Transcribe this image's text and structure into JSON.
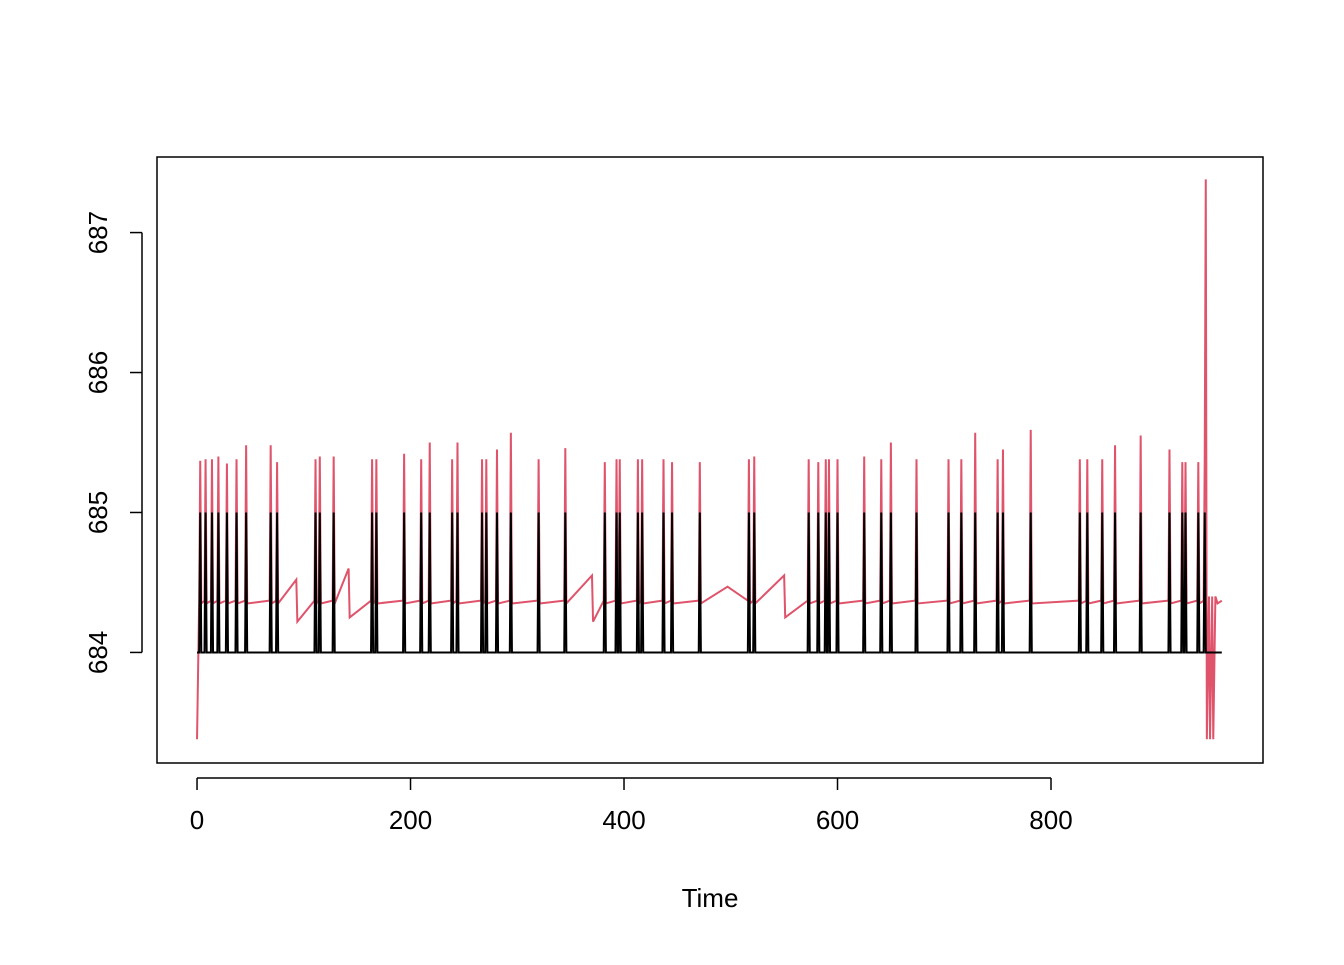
{
  "chart_data": {
    "type": "line",
    "xlabel": "Time",
    "x": [
      0,
      2,
      3,
      4,
      7,
      8,
      9,
      13,
      14,
      15,
      19,
      20,
      21,
      27,
      28,
      29,
      36,
      37,
      38,
      45,
      46,
      47,
      68,
      69,
      70,
      74,
      75,
      76,
      93,
      94,
      110,
      111,
      112,
      114,
      115,
      116,
      127,
      128,
      129,
      142,
      143,
      163,
      164,
      165,
      167,
      168,
      169,
      193,
      194,
      195,
      209,
      210,
      211,
      217,
      218,
      219,
      238,
      239,
      240,
      243,
      244,
      245,
      266,
      267,
      268,
      270,
      271,
      272,
      280,
      281,
      282,
      293,
      294,
      295,
      319,
      320,
      321,
      344,
      345,
      346,
      370,
      371,
      381,
      382,
      383,
      392,
      393,
      394,
      395,
      396,
      397,
      412,
      413,
      414,
      416,
      417,
      418,
      436,
      437,
      438,
      444,
      445,
      446,
      470,
      471,
      472,
      497,
      516,
      517,
      518,
      521,
      522,
      523,
      550,
      551,
      572,
      573,
      574,
      581,
      582,
      583,
      588,
      589,
      590,
      591,
      592,
      593,
      599,
      600,
      601,
      624,
      625,
      626,
      640,
      641,
      642,
      649,
      650,
      651,
      673,
      674,
      675,
      703,
      704,
      705,
      715,
      716,
      717,
      728,
      729,
      730,
      749,
      750,
      751,
      754,
      755,
      756,
      780,
      781,
      782,
      826,
      827,
      828,
      833,
      834,
      835,
      847,
      848,
      849,
      859,
      860,
      861,
      883,
      884,
      885,
      910,
      911,
      912,
      922,
      923,
      924,
      925,
      926,
      927,
      937,
      938,
      939,
      943,
      944,
      945,
      946,
      948,
      949,
      951,
      952,
      954,
      956,
      960
    ],
    "series": [
      {
        "color": "#DF536B",
        "values": [
          683.38,
          684.37,
          685.37,
          684.35,
          684.37,
          685.38,
          684.35,
          684.37,
          685.38,
          684.35,
          684.37,
          685.4,
          684.35,
          684.37,
          685.35,
          684.35,
          684.37,
          685.38,
          684.35,
          684.37,
          685.48,
          684.35,
          684.37,
          685.48,
          684.35,
          684.37,
          685.36,
          684.35,
          684.52,
          684.22,
          684.37,
          685.38,
          684.35,
          684.37,
          685.4,
          684.35,
          684.37,
          685.4,
          684.35,
          684.6,
          684.25,
          684.37,
          685.38,
          684.35,
          684.37,
          685.38,
          684.35,
          684.37,
          685.42,
          684.35,
          684.37,
          685.38,
          684.35,
          684.37,
          685.5,
          684.35,
          684.37,
          685.38,
          684.35,
          684.37,
          685.5,
          684.35,
          684.37,
          685.38,
          684.35,
          684.37,
          685.38,
          684.35,
          684.37,
          685.45,
          684.35,
          684.37,
          685.57,
          684.35,
          684.37,
          685.38,
          684.35,
          684.37,
          685.46,
          684.35,
          684.55,
          684.22,
          684.37,
          685.36,
          684.35,
          684.37,
          685.38,
          684.35,
          684.37,
          685.38,
          684.35,
          684.37,
          685.38,
          684.35,
          684.37,
          685.38,
          684.35,
          684.37,
          685.38,
          684.35,
          684.37,
          685.36,
          684.35,
          684.37,
          685.36,
          684.35,
          684.47,
          684.37,
          685.38,
          684.35,
          684.37,
          685.4,
          684.35,
          684.55,
          684.25,
          684.37,
          685.38,
          684.35,
          684.37,
          685.36,
          684.35,
          684.37,
          685.38,
          684.35,
          684.37,
          685.38,
          684.35,
          684.37,
          685.38,
          684.35,
          684.37,
          685.4,
          684.35,
          684.37,
          685.38,
          684.35,
          684.37,
          685.5,
          684.35,
          684.37,
          685.38,
          684.35,
          684.37,
          685.38,
          684.35,
          684.37,
          685.38,
          684.35,
          684.37,
          685.57,
          684.35,
          684.37,
          685.38,
          684.35,
          684.37,
          685.45,
          684.35,
          684.37,
          685.59,
          684.35,
          684.37,
          685.38,
          684.35,
          684.37,
          685.38,
          684.35,
          684.37,
          685.38,
          684.35,
          684.37,
          685.48,
          684.35,
          684.37,
          685.55,
          684.35,
          684.37,
          685.45,
          684.35,
          684.37,
          685.36,
          684.35,
          684.37,
          685.36,
          684.35,
          684.37,
          685.36,
          684.35,
          684.37,
          685.38,
          687.38,
          683.38,
          684.4,
          683.38,
          684.4,
          683.38,
          684.4,
          684.35,
          684.37
        ]
      },
      {
        "color": "#000000",
        "values": [
          684,
          684,
          685,
          684,
          684,
          685,
          684,
          684,
          685,
          684,
          684,
          685,
          684,
          684,
          685,
          684,
          684,
          685,
          684,
          684,
          685,
          684,
          684,
          685,
          684,
          684,
          685,
          684,
          684,
          684,
          684,
          685,
          684,
          684,
          685,
          684,
          684,
          685,
          684,
          684,
          684,
          684,
          685,
          684,
          684,
          685,
          684,
          684,
          685,
          684,
          684,
          685,
          684,
          684,
          685,
          684,
          684,
          685,
          684,
          684,
          685,
          684,
          684,
          685,
          684,
          684,
          685,
          684,
          684,
          685,
          684,
          684,
          685,
          684,
          684,
          685,
          684,
          684,
          685,
          684,
          684,
          684,
          684,
          685,
          684,
          684,
          685,
          684,
          684,
          685,
          684,
          684,
          685,
          684,
          684,
          685,
          684,
          684,
          685,
          684,
          684,
          685,
          684,
          684,
          685,
          684,
          684,
          684,
          685,
          684,
          684,
          685,
          684,
          684,
          684,
          684,
          685,
          684,
          684,
          685,
          684,
          684,
          685,
          684,
          684,
          685,
          684,
          684,
          685,
          684,
          684,
          685,
          684,
          684,
          685,
          684,
          684,
          685,
          684,
          684,
          685,
          684,
          684,
          685,
          684,
          684,
          685,
          684,
          684,
          685,
          684,
          684,
          685,
          684,
          684,
          685,
          684,
          684,
          685,
          684,
          684,
          685,
          684,
          684,
          685,
          684,
          684,
          685,
          684,
          684,
          685,
          684,
          684,
          685,
          684,
          684,
          685,
          684,
          684,
          685,
          684,
          684,
          685,
          684,
          684,
          685,
          684,
          684,
          685,
          684,
          684,
          684,
          684,
          684,
          684,
          684,
          684,
          684
        ]
      }
    ],
    "xlim": [
      -37.5,
      998.6
    ],
    "ylim": [
      683.21,
      687.54
    ],
    "xticks": [
      0,
      200,
      400,
      600,
      800
    ],
    "yticks": [
      684,
      685,
      686,
      687
    ]
  }
}
